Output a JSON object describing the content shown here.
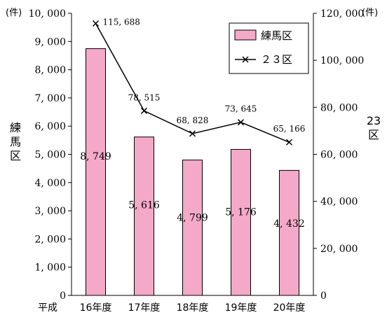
{
  "chart_data": {
    "type": "bar",
    "categories": [
      "16年度",
      "17年度",
      "18年度",
      "19年度",
      "20年度"
    ],
    "category_prefix": "平成",
    "series": [
      {
        "name": "練馬区",
        "type": "bar",
        "axis": "left",
        "values": [
          8749,
          5616,
          4799,
          5176,
          4432
        ],
        "labels": [
          "8, 749",
          "5, 616",
          "4, 799",
          "5, 176",
          "4, 432"
        ],
        "color": "#f4a9c8"
      },
      {
        "name": "２３区",
        "type": "line",
        "axis": "right",
        "marker": "x",
        "values": [
          115688,
          78515,
          68828,
          73645,
          65166
        ],
        "labels": [
          "115, 688",
          "78, 515",
          "68, 828",
          "73, 645",
          "65, 166"
        ],
        "color": "#000000"
      }
    ],
    "left_axis": {
      "title": "練馬区",
      "unit": "(件)",
      "ylim": [
        0,
        10000
      ],
      "ticks": [
        0,
        1000,
        2000,
        3000,
        4000,
        5000,
        6000,
        7000,
        8000,
        9000,
        10000
      ],
      "tick_labels": [
        "0",
        "1, 000",
        "2, 000",
        "3, 000",
        "4, 000",
        "5, 000",
        "6, 000",
        "7, 000",
        "8, 000",
        "9, 000",
        "10, 000"
      ]
    },
    "right_axis": {
      "title": "23区",
      "unit": "(件)",
      "ylim": [
        0,
        120000
      ],
      "ticks": [
        0,
        20000,
        40000,
        60000,
        80000,
        100000,
        120000
      ],
      "tick_labels": [
        "0",
        "20, 000",
        "40, 000",
        "60, 000",
        "80, 000",
        "100, 000",
        "120, 000"
      ]
    },
    "legend_position": "top-right",
    "grid": false
  }
}
